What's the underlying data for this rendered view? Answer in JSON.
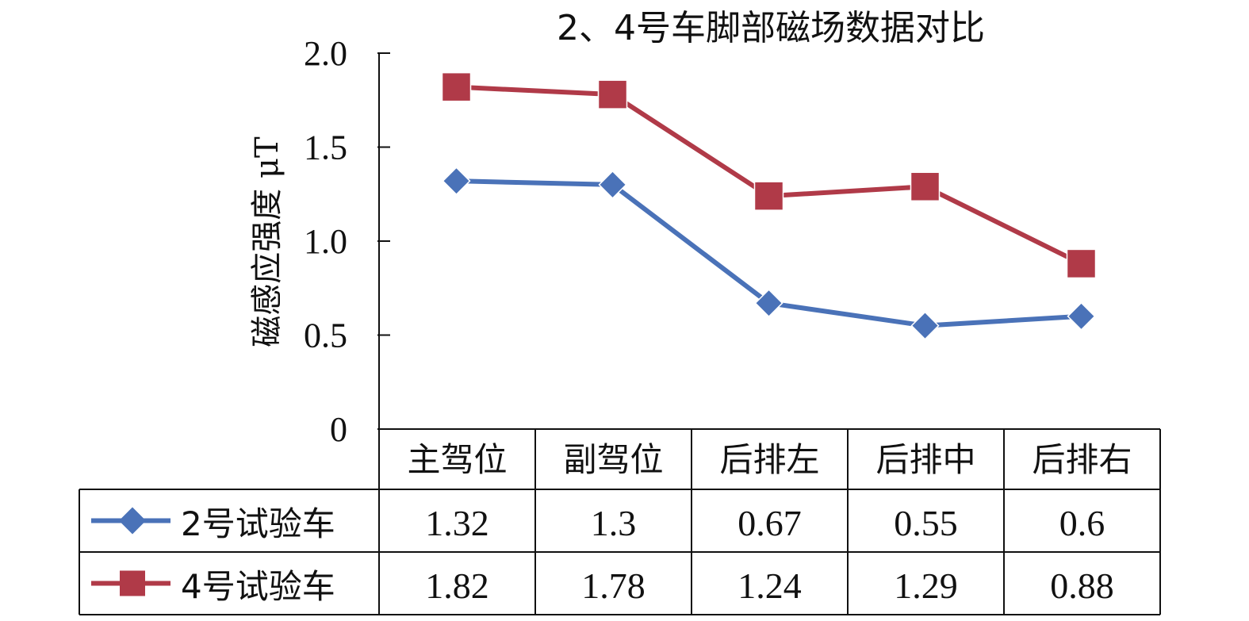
{
  "chart_data": {
    "type": "line",
    "title": "2、4号车脚部磁场数据对比",
    "ylabel": "磁感应强度 μT",
    "xlabel": "",
    "ylim": [
      0,
      2.0
    ],
    "yticks": [
      "2.0",
      "1.5",
      "1.0",
      "0.5",
      "0"
    ],
    "ytick_values": [
      2.0,
      1.5,
      1.0,
      0.5,
      0
    ],
    "categories": [
      "主驾位",
      "副驾位",
      "后排左",
      "后排中",
      "后排右"
    ],
    "series": [
      {
        "name": "2号试验车",
        "color": "#4a72b8",
        "marker": "diamond",
        "values": [
          1.32,
          1.3,
          0.67,
          0.55,
          0.6
        ],
        "labels": [
          "1.32",
          "1.3",
          "0.67",
          "0.55",
          "0.6"
        ]
      },
      {
        "name": "4号试验车",
        "color": "#b03a48",
        "marker": "square",
        "values": [
          1.82,
          1.78,
          1.24,
          1.29,
          0.88
        ],
        "labels": [
          "1.82",
          "1.78",
          "1.24",
          "1.29",
          "0.88"
        ]
      }
    ],
    "grid": false,
    "legend": "data-table"
  }
}
